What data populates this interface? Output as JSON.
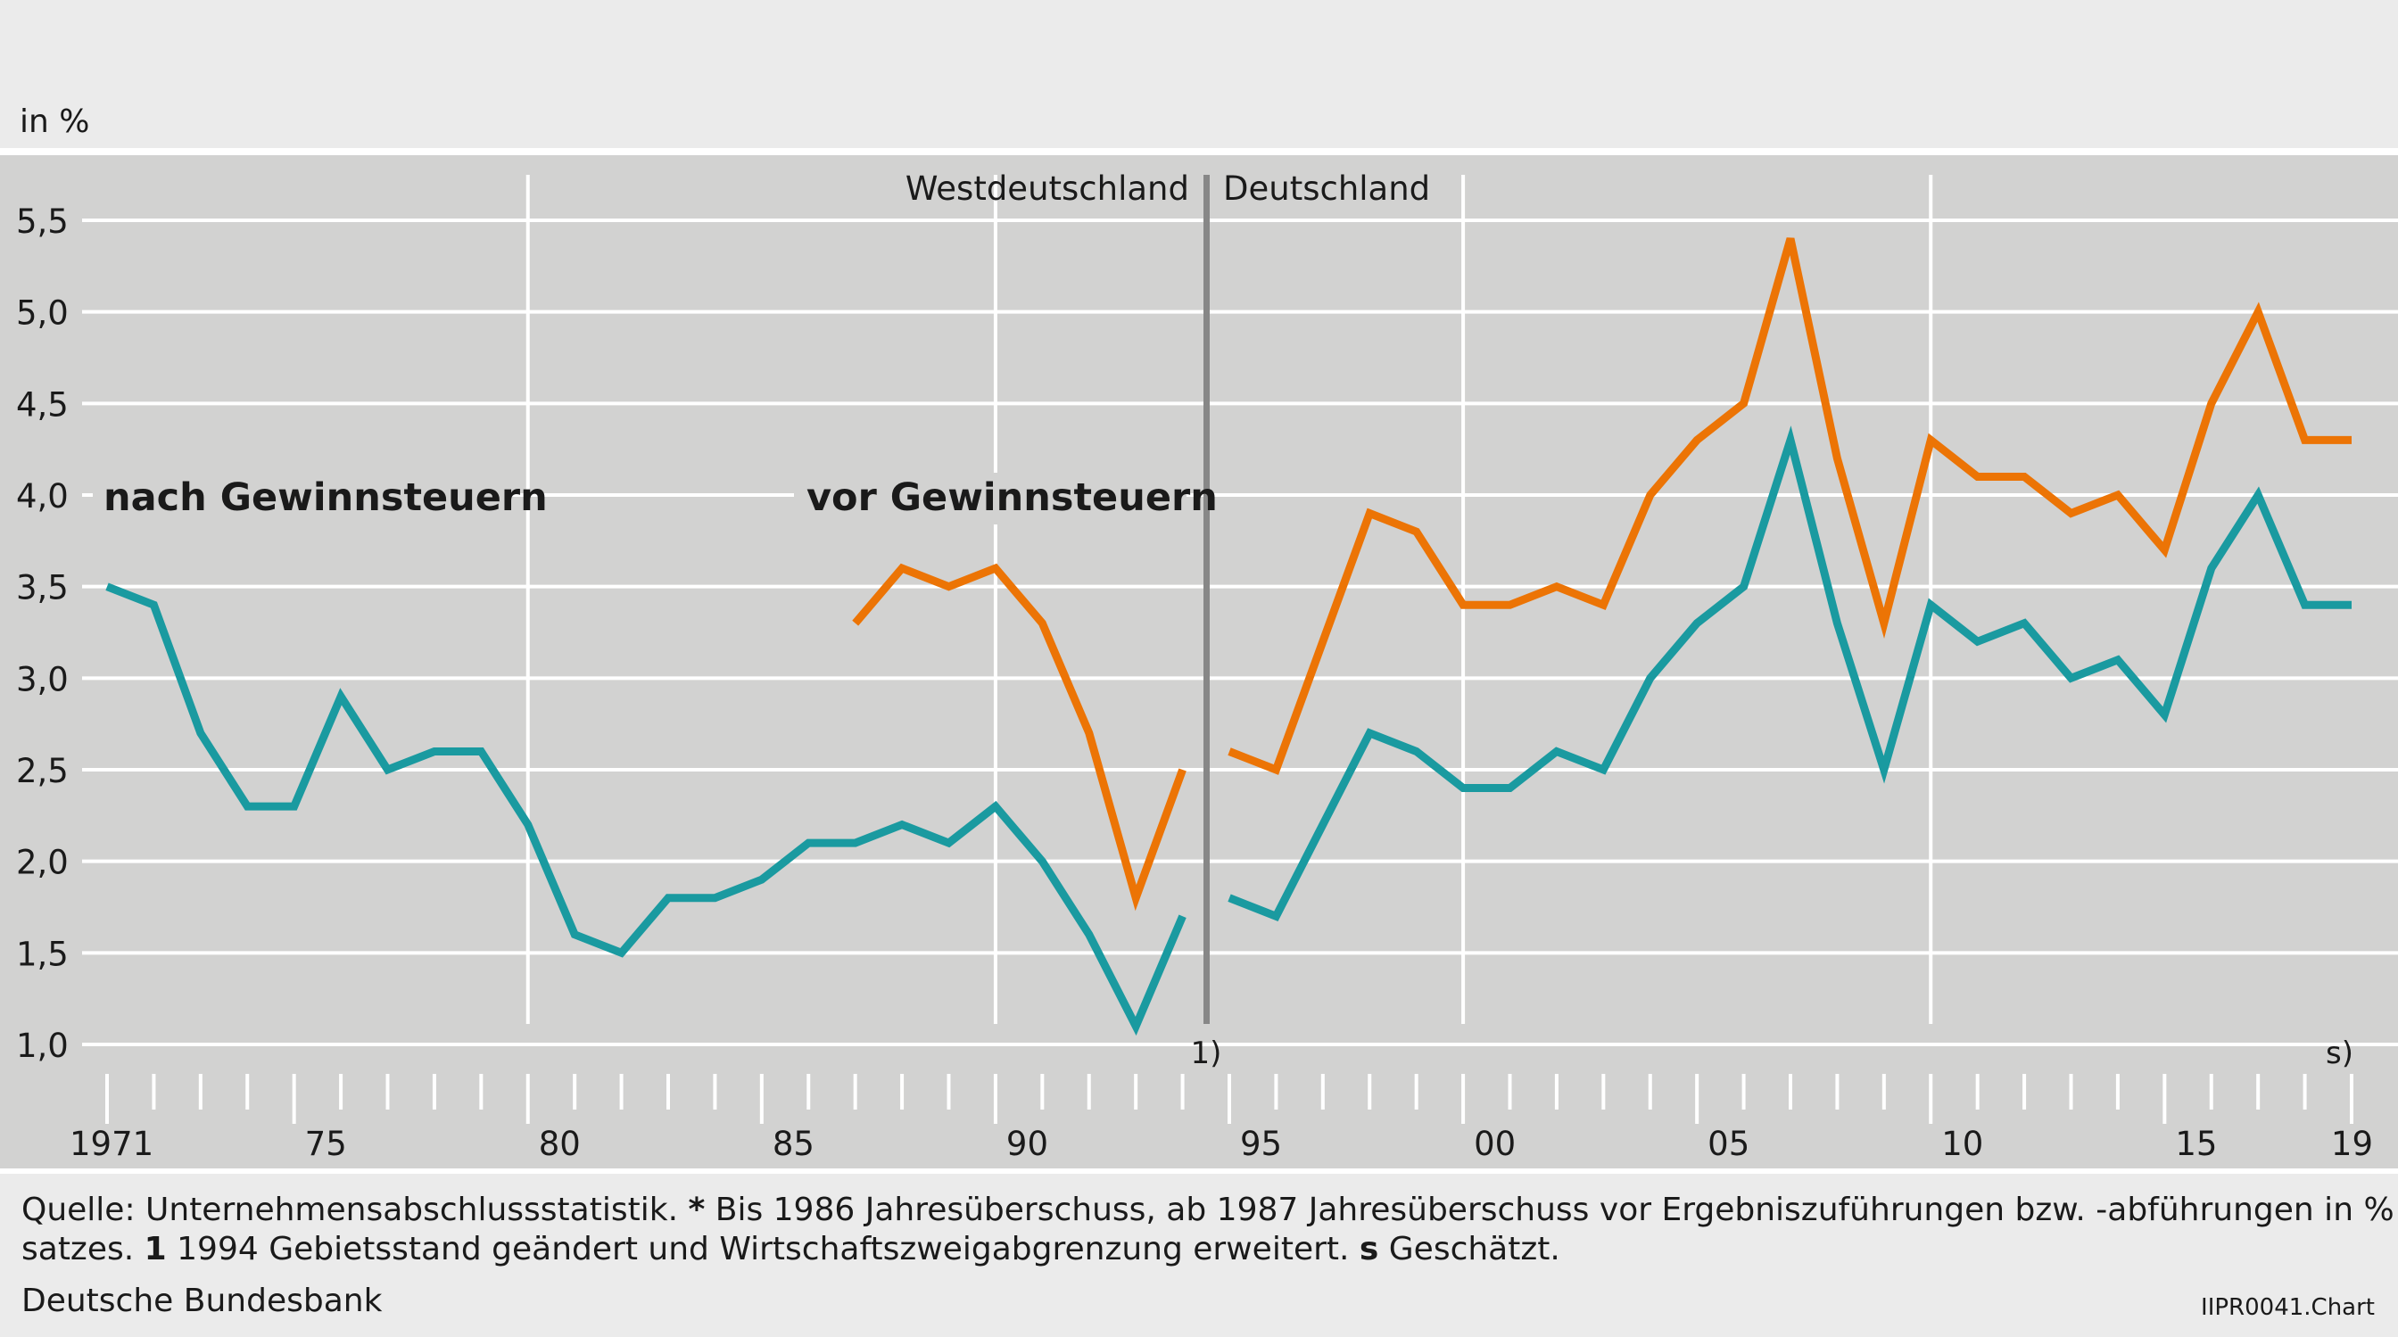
{
  "header": {
    "unit_label": "in %"
  },
  "chart_data": {
    "type": "line",
    "x_first_label": "1971",
    "x_tick_labels": [
      "75",
      "80",
      "85",
      "90",
      "95",
      "00",
      "05",
      "10",
      "15",
      "19"
    ],
    "y_ticks": [
      "1,0",
      "1,5",
      "2,0",
      "2,5",
      "3,0",
      "3,5",
      "4,0",
      "4,5",
      "5,0",
      "5,5"
    ],
    "ylim": [
      1.0,
      5.5
    ],
    "xlim": [
      1971,
      2019
    ],
    "grid": true,
    "region_labels": {
      "left": "Westdeutschland",
      "right": "Deutschland"
    },
    "break_year": 1994,
    "break_marker": "1)",
    "estimate_marker": "s)",
    "series": [
      {
        "name": "nach Gewinnsteuern",
        "color": "#1a9aa0",
        "segments": [
          {
            "x": [
              1971,
              1972,
              1973,
              1974,
              1975,
              1976,
              1977,
              1978,
              1979,
              1980,
              1981,
              1982,
              1983,
              1984,
              1985,
              1986,
              1987,
              1988,
              1989,
              1990,
              1991,
              1992,
              1993,
              1994
            ],
            "y": [
              3.5,
              3.4,
              2.7,
              2.3,
              2.3,
              2.9,
              2.5,
              2.6,
              2.6,
              2.2,
              1.6,
              1.5,
              1.8,
              1.8,
              1.9,
              2.1,
              2.1,
              2.2,
              2.1,
              2.3,
              2.0,
              1.6,
              1.1,
              1.7
            ]
          },
          {
            "x": [
              1995,
              1996,
              1997,
              1998,
              1999,
              2000,
              2001,
              2002,
              2003,
              2004,
              2005,
              2006,
              2007,
              2008,
              2009,
              2010,
              2011,
              2012,
              2013,
              2014,
              2015,
              2016,
              2017,
              2018,
              2019
            ],
            "y": [
              1.8,
              1.7,
              2.2,
              2.7,
              2.6,
              2.4,
              2.4,
              2.6,
              2.5,
              3.0,
              3.3,
              3.5,
              4.3,
              3.3,
              2.5,
              3.4,
              3.2,
              3.3,
              3.0,
              3.1,
              2.8,
              3.6,
              4.0,
              3.4,
              3.4
            ]
          }
        ]
      },
      {
        "name": "vor Gewinnsteuern",
        "color": "#ec7405",
        "segments": [
          {
            "x": [
              1987,
              1988,
              1989,
              1990,
              1991,
              1992,
              1993,
              1994
            ],
            "y": [
              3.3,
              3.6,
              3.5,
              3.6,
              3.3,
              2.7,
              1.8,
              2.5
            ]
          },
          {
            "x": [
              1995,
              1996,
              1997,
              1998,
              1999,
              2000,
              2001,
              2002,
              2003,
              2004,
              2005,
              2006,
              2007,
              2008,
              2009,
              2010,
              2011,
              2012,
              2013,
              2014,
              2015,
              2016,
              2017,
              2018,
              2019
            ],
            "y": [
              2.6,
              2.5,
              3.2,
              3.9,
              3.8,
              3.4,
              3.4,
              3.5,
              3.4,
              4.0,
              4.3,
              4.5,
              5.4,
              4.2,
              3.3,
              4.3,
              4.1,
              4.1,
              3.9,
              4.0,
              3.7,
              4.5,
              5.0,
              4.3,
              4.3
            ]
          }
        ]
      }
    ]
  },
  "footer": {
    "source_line_1_a": "Quelle: Unternehmensabschlussstatistik. ",
    "source_line_1_b": "*",
    "source_line_1_c": " Bis 1986 Jahresüberschuss, ab 1987 Jahresüberschuss vor Ergebniszuführungen bzw. -abführungen in % des Um-",
    "source_line_2_a": "satzes. ",
    "source_line_2_b": "1",
    "source_line_2_c": " 1994 Gebietsstand geändert und Wirtschaftszweigabgrenzung erweitert. ",
    "source_line_2_d": "s",
    "source_line_2_e": " Geschätzt.",
    "publisher": "Deutsche Bundesbank",
    "chart_id": "IIPR0041.Chart"
  }
}
